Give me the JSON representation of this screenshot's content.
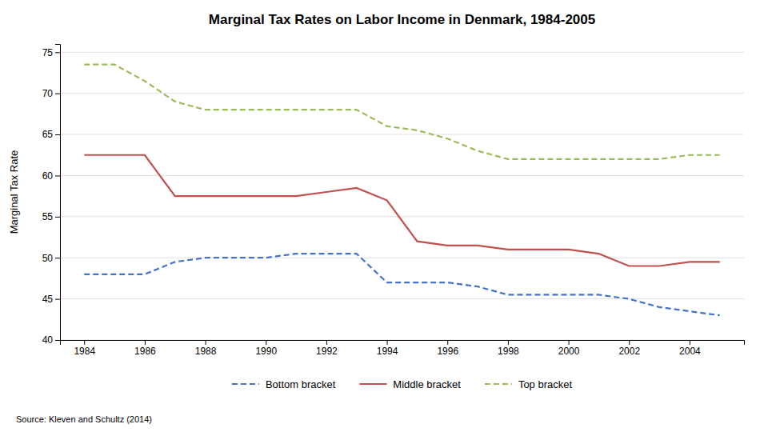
{
  "chart_data": {
    "type": "line",
    "title": "Marginal Tax Rates on Labor Income in Denmark, 1984-2005",
    "ylabel": "Marginal Tax Rate",
    "annotations": [
      "Source: Kleven and Schultz (2014)"
    ],
    "x": [
      1984,
      1985,
      1986,
      1987,
      1988,
      1989,
      1990,
      1991,
      1992,
      1993,
      1994,
      1995,
      1996,
      1997,
      1998,
      1999,
      2000,
      2001,
      2002,
      2003,
      2004,
      2005
    ],
    "series": [
      {
        "name": "Bottom bracket",
        "color": "#4472C4",
        "line_style": "dashed",
        "values": [
          48,
          48,
          48,
          49.5,
          50,
          50,
          50,
          50.5,
          50.5,
          50.5,
          47,
          47,
          47,
          46.5,
          45.5,
          45.5,
          45.5,
          45.5,
          45,
          44,
          43.5,
          43
        ]
      },
      {
        "name": "Middle bracket",
        "color": "#C0504D",
        "line_style": "solid",
        "values": [
          62.5,
          62.5,
          62.5,
          57.5,
          57.5,
          57.5,
          57.5,
          57.5,
          58,
          58.5,
          57,
          52,
          51.5,
          51.5,
          51,
          51,
          51,
          50.5,
          49,
          49,
          49.5,
          49.5
        ]
      },
      {
        "name": "Top bracket",
        "color": "#9BBB59",
        "line_style": "dashed",
        "values": [
          73.5,
          73.5,
          71.5,
          69,
          68,
          68,
          68,
          68,
          68,
          68,
          66,
          65.5,
          64.5,
          63,
          62,
          62,
          62,
          62,
          62,
          62,
          62.5,
          62.5
        ]
      }
    ],
    "xlim": [
      1983.2,
      2005.8
    ],
    "xticks": [
      1984,
      1986,
      1988,
      1990,
      1992,
      1994,
      1996,
      1998,
      2000,
      2002,
      2004
    ],
    "ylim": [
      40,
      76
    ],
    "yticks": [
      40,
      45,
      50,
      55,
      60,
      65,
      70,
      75
    ],
    "grid": true,
    "legend": "bottom"
  }
}
